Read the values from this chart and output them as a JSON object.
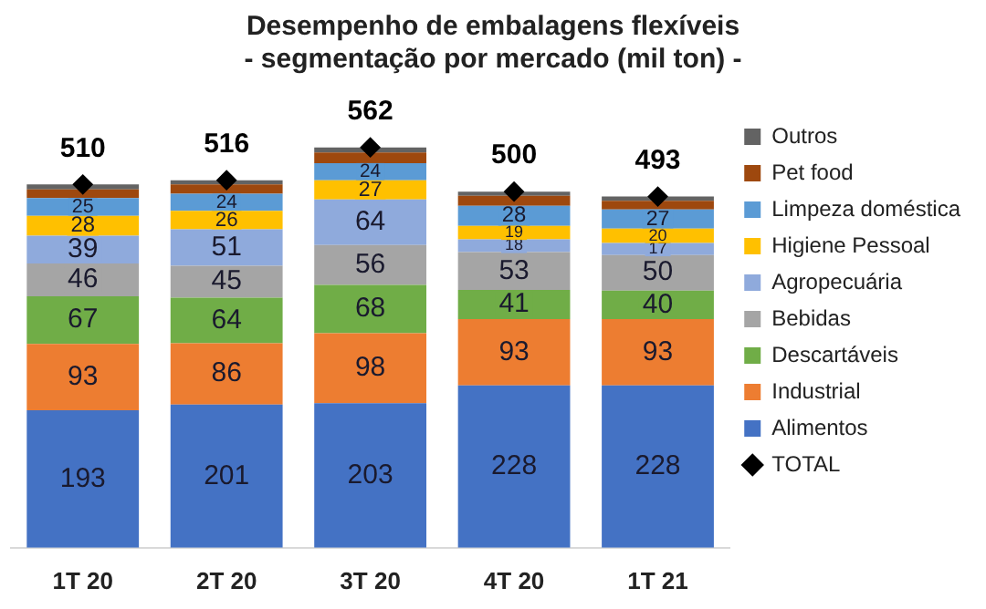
{
  "chart_data": {
    "type": "bar",
    "title": "Desempenho de embalagens flexíveis",
    "subtitle": "- segmentação por mercado (mil ton) -",
    "categories": [
      "1T 20",
      "2T 20",
      "3T 20",
      "4T 20",
      "1T 21"
    ],
    "stacked": true,
    "legend": "right",
    "tick_labels": "x",
    "grid": false,
    "series": [
      {
        "name": "Alimentos",
        "color": "#4472c4",
        "values": [
          193,
          201,
          203,
          228,
          228
        ],
        "value_labels": [
          "193",
          "201",
          "203",
          "228",
          "228"
        ]
      },
      {
        "name": "Industrial",
        "color": "#ed7d31",
        "values": [
          93,
          86,
          98,
          93,
          93
        ],
        "value_labels": [
          "93",
          "86",
          "98",
          "93",
          "93"
        ]
      },
      {
        "name": "Descartáveis",
        "color": "#70ad47",
        "values": [
          67,
          64,
          68,
          41,
          40
        ],
        "value_labels": [
          "67",
          "64",
          "68",
          "41",
          "40"
        ]
      },
      {
        "name": "Bebidas",
        "color": "#a5a5a5",
        "values": [
          46,
          45,
          56,
          53,
          50
        ],
        "value_labels": [
          "46",
          "45",
          "56",
          "53",
          "50"
        ]
      },
      {
        "name": "Agropecuária",
        "color": "#8faadc",
        "values": [
          39,
          51,
          64,
          18,
          17
        ],
        "value_labels": [
          "39",
          "51",
          "64",
          "18",
          "17"
        ]
      },
      {
        "name": "Higiene Pessoal",
        "color": "#ffc000",
        "values": [
          28,
          26,
          27,
          19,
          20
        ],
        "value_labels": [
          "28",
          "26",
          "27",
          "19",
          "20"
        ]
      },
      {
        "name": "Limpeza doméstica",
        "color": "#5b9bd5",
        "values": [
          25,
          24,
          24,
          28,
          27
        ],
        "value_labels": [
          "25",
          "24",
          "24",
          "28",
          "27"
        ]
      },
      {
        "name": "Pet food",
        "color": "#9e480e",
        "values": [
          12,
          13,
          15,
          14,
          12
        ]
      },
      {
        "name": "Outros",
        "color": "#636363",
        "values": [
          7,
          6,
          7,
          6,
          6
        ]
      },
      {
        "name": "TOTAL",
        "type": "scatter",
        "marker": "diamond",
        "color": "#000000",
        "values": [
          510,
          516,
          562,
          500,
          493
        ],
        "value_labels": [
          "510",
          "516",
          "562",
          "500",
          "493"
        ]
      }
    ]
  }
}
